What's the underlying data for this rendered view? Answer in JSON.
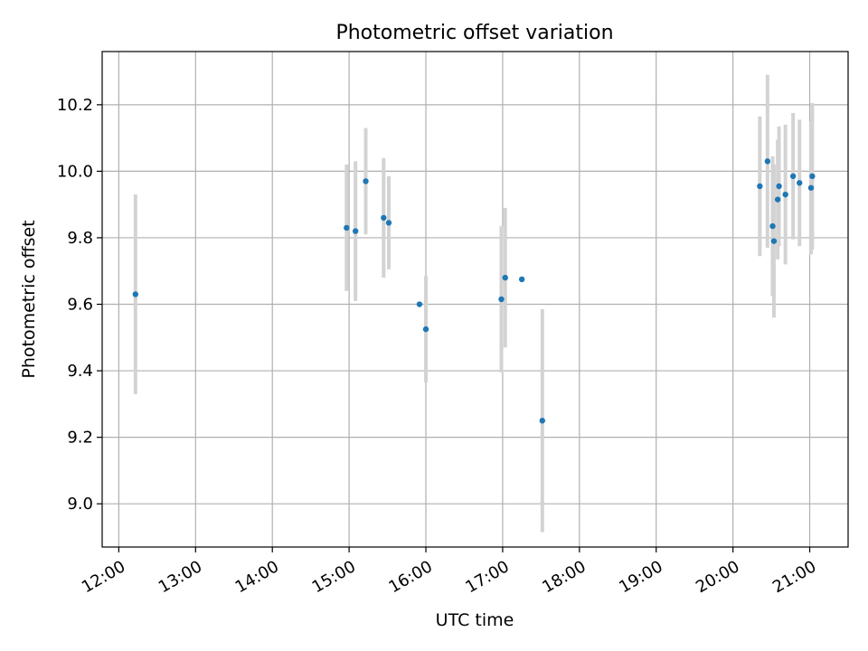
{
  "chart_data": {
    "type": "scatter",
    "title": "Photometric offset variation",
    "xlabel": "UTC time",
    "ylabel": "Photometric offset",
    "x_ticks": [
      "12:00",
      "13:00",
      "14:00",
      "15:00",
      "16:00",
      "17:00",
      "18:00",
      "19:00",
      "20:00",
      "21:00"
    ],
    "y_ticks": [
      "9.0",
      "9.2",
      "9.4",
      "9.6",
      "9.8",
      "10.0",
      "10.2"
    ],
    "xlim": [
      "11:47",
      "21:30"
    ],
    "ylim": [
      8.87,
      10.36
    ],
    "grid": true,
    "marker_color": "#1f77b4",
    "errorbar_color": "#d3d3d3",
    "points": [
      {
        "x": "12:13",
        "y": 9.63,
        "err": 0.3
      },
      {
        "x": "14:58",
        "y": 9.83,
        "err": 0.19
      },
      {
        "x": "15:05",
        "y": 9.82,
        "err": 0.21
      },
      {
        "x": "15:13",
        "y": 9.97,
        "err": 0.16
      },
      {
        "x": "15:27",
        "y": 9.86,
        "err": 0.18
      },
      {
        "x": "15:31",
        "y": 9.845,
        "err": 0.14
      },
      {
        "x": "15:55",
        "y": 9.6,
        "err": 0.0
      },
      {
        "x": "16:00",
        "y": 9.525,
        "err": 0.16
      },
      {
        "x": "16:59",
        "y": 9.615,
        "err": 0.22
      },
      {
        "x": "17:02",
        "y": 9.68,
        "err": 0.21
      },
      {
        "x": "17:15",
        "y": 9.675,
        "err": 0.0
      },
      {
        "x": "17:31",
        "y": 9.25,
        "err": 0.335
      },
      {
        "x": "20:21",
        "y": 9.955,
        "err": 0.21
      },
      {
        "x": "20:27",
        "y": 10.03,
        "err": 0.26
      },
      {
        "x": "20:31",
        "y": 9.835,
        "err": 0.21
      },
      {
        "x": "20:32",
        "y": 9.79,
        "err": 0.23
      },
      {
        "x": "20:35",
        "y": 9.915,
        "err": 0.18
      },
      {
        "x": "20:36",
        "y": 9.955,
        "err": 0.18
      },
      {
        "x": "20:41",
        "y": 9.93,
        "err": 0.21
      },
      {
        "x": "20:47",
        "y": 9.985,
        "err": 0.19
      },
      {
        "x": "20:52",
        "y": 9.965,
        "err": 0.19
      },
      {
        "x": "21:01",
        "y": 9.95,
        "err": 0.2
      },
      {
        "x": "21:02",
        "y": 9.985,
        "err": 0.22
      }
    ]
  }
}
